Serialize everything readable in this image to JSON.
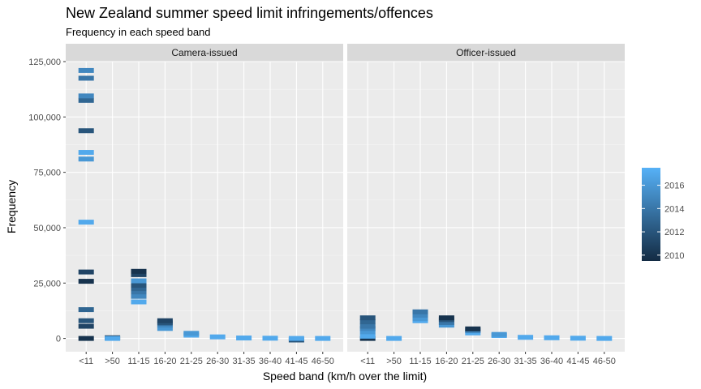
{
  "chart_data": {
    "type": "heatmap",
    "title": "New Zealand summer speed limit infringements/offences",
    "subtitle": "Frequency in each speed band",
    "xlabel": "Speed band (km/h over the limit)",
    "ylabel": "Frequency",
    "ylim": [
      -6000,
      125000
    ],
    "y_ticks": [
      0,
      25000,
      50000,
      75000,
      100000,
      125000
    ],
    "y_tick_labels": [
      "0",
      "25,000",
      "50,000",
      "75,000",
      "100,000",
      "125,000"
    ],
    "categories": [
      "<11",
      ">50",
      "11-15",
      "16-20",
      "21-25",
      "26-30",
      "31-35",
      "36-40",
      "41-45",
      "46-50"
    ],
    "grid": true,
    "legend": {
      "position": "right",
      "type": "colorbar",
      "labels": [
        "2010",
        "2012",
        "2014",
        "2016"
      ],
      "range": [
        2009.5,
        2017.5
      ],
      "color_low": "#132B43",
      "color_high": "#56B1F7"
    },
    "facets": [
      {
        "name": "Camera-issued",
        "points": [
          {
            "category": "<11",
            "year": 2010,
            "value": 0
          },
          {
            "category": "<11",
            "year": 2011,
            "value": 5500
          },
          {
            "category": "<11",
            "year": 2012,
            "value": 8000
          },
          {
            "category": "<11",
            "year": 2013,
            "value": 13000
          },
          {
            "category": "<11",
            "year": 2010,
            "value": 25800
          },
          {
            "category": "<11",
            "year": 2011,
            "value": 30000
          },
          {
            "category": "<11",
            "year": 2017,
            "value": 52500
          },
          {
            "category": "<11",
            "year": 2016,
            "value": 81000
          },
          {
            "category": "<11",
            "year": 2017,
            "value": 84000
          },
          {
            "category": "<11",
            "year": 2012,
            "value": 93800
          },
          {
            "category": "<11",
            "year": 2013,
            "value": 107500
          },
          {
            "category": "<11",
            "year": 2015,
            "value": 109500
          },
          {
            "category": "<11",
            "year": 2014,
            "value": 117500
          },
          {
            "category": "<11",
            "year": 2015,
            "value": 121000
          },
          {
            "category": ">50",
            "year": 2010,
            "value": 300
          },
          {
            "category": ">50",
            "year": 2017,
            "value": 0
          },
          {
            "category": "11-15",
            "year": 2017,
            "value": 16500
          },
          {
            "category": "11-15",
            "year": 2015,
            "value": 19000
          },
          {
            "category": "11-15",
            "year": 2014,
            "value": 21000
          },
          {
            "category": "11-15",
            "year": 2013,
            "value": 22500
          },
          {
            "category": "11-15",
            "year": 2012,
            "value": 24000
          },
          {
            "category": "11-15",
            "year": 2016,
            "value": 26000
          },
          {
            "category": "11-15",
            "year": 2011,
            "value": 28800
          },
          {
            "category": "11-15",
            "year": 2010,
            "value": 30300
          },
          {
            "category": "16-20",
            "year": 2016,
            "value": 4500
          },
          {
            "category": "16-20",
            "year": 2015,
            "value": 6000
          },
          {
            "category": "16-20",
            "year": 2012,
            "value": 7000
          },
          {
            "category": "16-20",
            "year": 2011,
            "value": 8000
          },
          {
            "category": "21-25",
            "year": 2017,
            "value": 1500
          },
          {
            "category": "21-25",
            "year": 2016,
            "value": 2300
          },
          {
            "category": "26-30",
            "year": 2017,
            "value": 700
          },
          {
            "category": "31-35",
            "year": 2017,
            "value": 200
          },
          {
            "category": "36-40",
            "year": 2017,
            "value": 100
          },
          {
            "category": "41-45",
            "year": 2012,
            "value": -700
          },
          {
            "category": "41-45",
            "year": 2017,
            "value": 0
          },
          {
            "category": "46-50",
            "year": 2017,
            "value": 0
          }
        ]
      },
      {
        "name": "Officer-issued",
        "points": [
          {
            "category": "<11",
            "year": 2010,
            "value": 0
          },
          {
            "category": "<11",
            "year": 2017,
            "value": 1000
          },
          {
            "category": "<11",
            "year": 2016,
            "value": 3000
          },
          {
            "category": "<11",
            "year": 2015,
            "value": 4500
          },
          {
            "category": "<11",
            "year": 2014,
            "value": 5500
          },
          {
            "category": "<11",
            "year": 2013,
            "value": 7500
          },
          {
            "category": "<11",
            "year": 2012,
            "value": 9300
          },
          {
            "category": ">50",
            "year": 2017,
            "value": 0
          },
          {
            "category": "11-15",
            "year": 2017,
            "value": 8000
          },
          {
            "category": "11-15",
            "year": 2016,
            "value": 9000
          },
          {
            "category": "11-15",
            "year": 2015,
            "value": 10500
          },
          {
            "category": "11-15",
            "year": 2014,
            "value": 12000
          },
          {
            "category": "16-20",
            "year": 2016,
            "value": 6000
          },
          {
            "category": "16-20",
            "year": 2014,
            "value": 7200
          },
          {
            "category": "16-20",
            "year": 2012,
            "value": 8500
          },
          {
            "category": "16-20",
            "year": 2010,
            "value": 9300
          },
          {
            "category": "21-25",
            "year": 2017,
            "value": 2500
          },
          {
            "category": "21-25",
            "year": 2015,
            "value": 3500
          },
          {
            "category": "21-25",
            "year": 2010,
            "value": 4300
          },
          {
            "category": "26-30",
            "year": 2017,
            "value": 1300
          },
          {
            "category": "26-30",
            "year": 2016,
            "value": 1800
          },
          {
            "category": "31-35",
            "year": 2017,
            "value": 500
          },
          {
            "category": "36-40",
            "year": 2017,
            "value": 300
          },
          {
            "category": "41-45",
            "year": 2017,
            "value": 100
          },
          {
            "category": "46-50",
            "year": 2017,
            "value": 0
          }
        ]
      }
    ]
  }
}
